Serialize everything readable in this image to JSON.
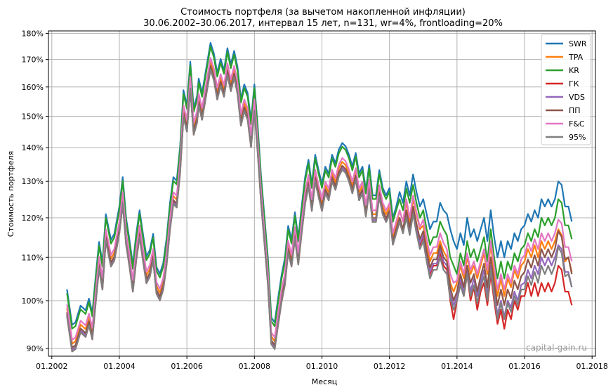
{
  "chart_data": {
    "type": "line",
    "title_line1": "Стоимость портфеля (за вычетом накопленной инфляции)",
    "title_line2": "30.06.2002–30.06.2017, интервал 15 лет, n=131, wr=4%, frontloading=20%",
    "xlabel": "Месяц",
    "ylabel": "Стоимость портфеля",
    "xlim": [
      2001.9,
      2018.1
    ],
    "ylim": [
      88.5,
      181
    ],
    "y_scale": "log",
    "grid": true,
    "legend_position": "top-right",
    "watermark": "capital-gain.ru",
    "x_ticks": [
      {
        "v": 2002,
        "label": "01.2002"
      },
      {
        "v": 2004,
        "label": "01.2004"
      },
      {
        "v": 2006,
        "label": "01.2006"
      },
      {
        "v": 2008,
        "label": "01.2008"
      },
      {
        "v": 2010,
        "label": "01.2010"
      },
      {
        "v": 2012,
        "label": "01.2012"
      },
      {
        "v": 2014,
        "label": "01.2014"
      },
      {
        "v": 2016,
        "label": "01.2016"
      },
      {
        "v": 2018,
        "label": "01.2018"
      }
    ],
    "y_ticks": [
      {
        "v": 90,
        "label": "90%"
      },
      {
        "v": 100,
        "label": "100%"
      },
      {
        "v": 110,
        "label": "110%"
      },
      {
        "v": 120,
        "label": "120%"
      },
      {
        "v": 130,
        "label": "130%"
      },
      {
        "v": 140,
        "label": "140%"
      },
      {
        "v": 150,
        "label": "150%"
      },
      {
        "v": 160,
        "label": "160%"
      },
      {
        "v": 170,
        "label": "170%"
      },
      {
        "v": 180,
        "label": "180%"
      }
    ],
    "base": {
      "x": [
        2002.45,
        2002.6,
        2002.7,
        2002.85,
        2003.0,
        2003.1,
        2003.2,
        2003.3,
        2003.4,
        2003.5,
        2003.6,
        2003.75,
        2003.85,
        2004.0,
        2004.1,
        2004.2,
        2004.3,
        2004.4,
        2004.5,
        2004.6,
        2004.7,
        2004.8,
        2004.9,
        2005.0,
        2005.1,
        2005.2,
        2005.3,
        2005.4,
        2005.5,
        2005.6,
        2005.7,
        2005.8,
        2005.9,
        2006.0,
        2006.1,
        2006.2,
        2006.3,
        2006.35,
        2006.45,
        2006.55,
        2006.7,
        2006.8,
        2006.9,
        2007.0,
        2007.1,
        2007.2,
        2007.3,
        2007.4,
        2007.5,
        2007.6,
        2007.7,
        2007.8,
        2007.9,
        2008.0,
        2008.1,
        2008.2,
        2008.3,
        2008.4,
        2008.5,
        2008.6,
        2008.7,
        2008.8,
        2008.9,
        2009.0,
        2009.1,
        2009.2,
        2009.3,
        2009.4,
        2009.5,
        2009.6,
        2009.7,
        2009.8,
        2009.9,
        2010.0,
        2010.1,
        2010.2,
        2010.3,
        2010.4,
        2010.5,
        2010.6,
        2010.7,
        2010.8,
        2010.9,
        2011.0,
        2011.1,
        2011.2,
        2011.3,
        2011.4,
        2011.5,
        2011.6,
        2011.7,
        2011.8,
        2011.9,
        2012.0,
        2012.1,
        2012.2
      ],
      "y": [
        100,
        92.5,
        93,
        96.5,
        95.5,
        98,
        95,
        103,
        111,
        106,
        118,
        111.5,
        113,
        120,
        128,
        117,
        111.5,
        105.5,
        113,
        119,
        113,
        107.5,
        109,
        113,
        105,
        103.5,
        106,
        112,
        121,
        128,
        127,
        137,
        155,
        150,
        165,
        149,
        153,
        159,
        154,
        161,
        172,
        168,
        161,
        166,
        162,
        170,
        164,
        169,
        163,
        152,
        157,
        154,
        145,
        157,
        143,
        128,
        117,
        107,
        94,
        93,
        98,
        103,
        107,
        115,
        111.5,
        118.5,
        112,
        120,
        128,
        133,
        126,
        134.5,
        130,
        126,
        131,
        129,
        134.5,
        132,
        136,
        138,
        137,
        134.5,
        131,
        135,
        129,
        131,
        124.5,
        131.5,
        123,
        123,
        130,
        125,
        123,
        125,
        117,
        120
      ]
    },
    "series": [
      {
        "name": "SWR",
        "color": "#1f77b4",
        "x": [
          2012.2,
          2012.3,
          2012.4,
          2012.5,
          2012.6,
          2012.7,
          2012.8,
          2012.9,
          2013.0,
          2013.1,
          2013.2,
          2013.3,
          2013.4,
          2013.5,
          2013.6,
          2013.7,
          2013.8,
          2013.9,
          2014.0,
          2014.1,
          2014.2,
          2014.3,
          2014.4,
          2014.5,
          2014.6,
          2014.7,
          2014.8,
          2014.9,
          2015.0,
          2015.1,
          2015.2,
          2015.3,
          2015.4,
          2015.5,
          2015.6,
          2015.7,
          2015.8,
          2015.9,
          2016.0,
          2016.1,
          2016.2,
          2016.3,
          2016.4,
          2016.5,
          2016.6,
          2016.7,
          2016.8,
          2016.9,
          2017.0,
          2017.1,
          2017.2,
          2017.3,
          2017.4
        ],
        "y": [
          123,
          127,
          124,
          130,
          126,
          132,
          127,
          123,
          125,
          121,
          117,
          119,
          119,
          124,
          122,
          121,
          117,
          114,
          112,
          116,
          113,
          120,
          115,
          117,
          114,
          117,
          120,
          114,
          122,
          115,
          110,
          114,
          110,
          114,
          112,
          116,
          114,
          117,
          118,
          121,
          119,
          122,
          120,
          125,
          123,
          125,
          123,
          125,
          130,
          129,
          123,
          123,
          119
        ]
      },
      {
        "name": "TPA",
        "color": "#ff7f0e",
        "x": [
          2012.2,
          2012.3,
          2012.4,
          2012.5,
          2012.6,
          2012.7,
          2012.8,
          2012.9,
          2013.0,
          2013.1,
          2013.2,
          2013.3,
          2013.4,
          2013.5,
          2013.6,
          2013.7,
          2013.8,
          2013.9,
          2014.0,
          2014.1,
          2014.2,
          2014.3,
          2014.4,
          2014.5,
          2014.6,
          2014.7,
          2014.8,
          2014.9,
          2015.0,
          2015.1,
          2015.2,
          2015.3,
          2015.4,
          2015.5,
          2015.6,
          2015.7,
          2015.8,
          2015.9,
          2016.0,
          2016.1,
          2016.2,
          2016.3,
          2016.4,
          2016.5,
          2016.6,
          2016.7,
          2016.8,
          2016.9,
          2017.0,
          2017.1,
          2017.2,
          2017.3,
          2017.4
        ],
        "y": [
          118,
          122,
          119,
          124,
          119,
          125,
          121,
          117,
          118,
          113.5,
          109,
          111,
          111,
          114,
          111.5,
          110,
          104,
          102,
          104,
          108,
          105,
          110,
          106,
          108,
          105,
          108,
          111,
          106,
          113,
          106.5,
          101,
          105,
          101,
          105,
          103,
          107,
          105,
          108,
          109,
          112,
          110,
          113,
          110,
          114,
          112,
          114,
          112,
          114,
          117,
          115.5,
          109,
          110,
          106.5
        ]
      },
      {
        "name": "KR",
        "color": "#2ca02c",
        "x": [
          2012.2,
          2012.3,
          2012.4,
          2012.5,
          2012.6,
          2012.7,
          2012.8,
          2012.9,
          2013.0,
          2013.1,
          2013.2,
          2013.3,
          2013.4,
          2013.5,
          2013.6,
          2013.7,
          2013.8,
          2013.9,
          2014.0,
          2014.1,
          2014.2,
          2014.3,
          2014.4,
          2014.5,
          2014.6,
          2014.7,
          2014.8,
          2014.9,
          2015.0,
          2015.1,
          2015.2,
          2015.3,
          2015.4,
          2015.5,
          2015.6,
          2015.7,
          2015.8,
          2015.9,
          2016.0,
          2016.1,
          2016.2,
          2016.3,
          2016.4,
          2016.5,
          2016.6,
          2016.7,
          2016.8,
          2016.9,
          2017.0,
          2017.1,
          2017.2,
          2017.3,
          2017.4
        ],
        "y": [
          122,
          125,
          122,
          128,
          124,
          129,
          124,
          120,
          122,
          117,
          113,
          115,
          115,
          119,
          117,
          115.5,
          110,
          108,
          106,
          111,
          108,
          114,
          110,
          112,
          109,
          112,
          115,
          109,
          117,
          110,
          105,
          109,
          105,
          109,
          107,
          111,
          109,
          112,
          113,
          116,
          114,
          117,
          115,
          120,
          118,
          120,
          118,
          120,
          125,
          124,
          118,
          118,
          114.5
        ]
      },
      {
        "name": "ГК",
        "color": "#d62728",
        "x": [
          2012.2,
          2012.3,
          2012.4,
          2012.5,
          2012.6,
          2012.7,
          2012.8,
          2012.9,
          2013.0,
          2013.1,
          2013.2,
          2013.3,
          2013.4,
          2013.5,
          2013.6,
          2013.7,
          2013.8,
          2013.9,
          2014.0,
          2014.1,
          2014.2,
          2014.3,
          2014.4,
          2014.5,
          2014.6,
          2014.7,
          2014.8,
          2014.9,
          2015.0,
          2015.1,
          2015.2,
          2015.3,
          2015.4,
          2015.5,
          2015.6,
          2015.7,
          2015.8,
          2015.9,
          2016.0,
          2016.1,
          2016.2,
          2016.3,
          2016.4,
          2016.5,
          2016.6,
          2016.7,
          2016.8,
          2016.9,
          2017.0,
          2017.1,
          2017.2,
          2017.3,
          2017.4
        ],
        "y": [
          116,
          119,
          116,
          121,
          116,
          122,
          117,
          113,
          115,
          110,
          106,
          108,
          108,
          111,
          108,
          107,
          100,
          96,
          100,
          104,
          101,
          106,
          100,
          103,
          98,
          102,
          104,
          99,
          106,
          100,
          95,
          98,
          94,
          98,
          96,
          100,
          98,
          101,
          101,
          104,
          101,
          104,
          101,
          104,
          102,
          104,
          102,
          104,
          108,
          107,
          102,
          102,
          99
        ]
      },
      {
        "name": "VDS",
        "color": "#9467bd",
        "x": [
          2012.2,
          2012.3,
          2012.4,
          2012.5,
          2012.6,
          2012.7,
          2012.8,
          2012.9,
          2013.0,
          2013.1,
          2013.2,
          2013.3,
          2013.4,
          2013.5,
          2013.6,
          2013.7,
          2013.8,
          2013.9,
          2014.0,
          2014.1,
          2014.2,
          2014.3,
          2014.4,
          2014.5,
          2014.6,
          2014.7,
          2014.8,
          2014.9,
          2015.0,
          2015.1,
          2015.2,
          2015.3,
          2015.4,
          2015.5,
          2015.6,
          2015.7,
          2015.8,
          2015.9,
          2016.0,
          2016.1,
          2016.2,
          2016.3,
          2016.4,
          2016.5,
          2016.6,
          2016.7,
          2016.8,
          2016.9,
          2017.0,
          2017.1,
          2017.2,
          2017.3,
          2017.4
        ],
        "y": [
          116.5,
          119.5,
          116.5,
          121.5,
          116.5,
          122.5,
          117.5,
          113.5,
          115.5,
          110.5,
          106.5,
          108.5,
          108.5,
          112,
          109,
          108,
          101.5,
          99,
          101,
          105,
          102,
          107,
          102,
          105,
          101,
          104,
          107,
          101.5,
          108,
          102,
          97,
          100,
          96.5,
          100,
          98.5,
          102,
          100,
          103.5,
          104,
          107,
          105,
          108,
          106,
          110,
          108,
          110,
          108,
          110,
          113,
          112,
          106.5,
          106.5,
          103
        ]
      },
      {
        "name": "ПП",
        "color": "#8c564b",
        "x": [
          2012.2,
          2012.3,
          2012.4,
          2012.5,
          2012.6,
          2012.7,
          2012.8,
          2012.9,
          2013.0,
          2013.1,
          2013.2,
          2013.3,
          2013.4,
          2013.5,
          2013.6,
          2013.7,
          2013.8,
          2013.9,
          2014.0,
          2014.1,
          2014.2,
          2014.3,
          2014.4,
          2014.5,
          2014.6,
          2014.7,
          2014.8,
          2014.9,
          2015.0,
          2015.1,
          2015.2,
          2015.3,
          2015.4,
          2015.5,
          2015.6,
          2015.7,
          2015.8,
          2015.9,
          2016.0,
          2016.1,
          2016.2,
          2016.3,
          2016.4,
          2016.5,
          2016.6,
          2016.7,
          2016.8,
          2016.9,
          2017.0,
          2017.1,
          2017.2,
          2017.3,
          2017.4
        ],
        "y": [
          117,
          120,
          117,
          122,
          117.5,
          123,
          118.5,
          114.5,
          116.5,
          111.5,
          107.5,
          109.5,
          109.5,
          113,
          110,
          109,
          103,
          100,
          102,
          106,
          103,
          108,
          104,
          106,
          102,
          105.5,
          108.5,
          103,
          110,
          104,
          99,
          102.5,
          99,
          102.5,
          100.5,
          104.5,
          102.5,
          105.5,
          106.5,
          109.5,
          107.5,
          110.5,
          108,
          112,
          110,
          112,
          110,
          112,
          116.5,
          115,
          109.5,
          110,
          106
        ]
      },
      {
        "name": "F&C",
        "color": "#e377c2",
        "x": [
          2012.2,
          2012.3,
          2012.4,
          2012.5,
          2012.6,
          2012.7,
          2012.8,
          2012.9,
          2013.0,
          2013.1,
          2013.2,
          2013.3,
          2013.4,
          2013.5,
          2013.6,
          2013.7,
          2013.8,
          2013.9,
          2014.0,
          2014.1,
          2014.2,
          2014.3,
          2014.4,
          2014.5,
          2014.6,
          2014.7,
          2014.8,
          2014.9,
          2015.0,
          2015.1,
          2015.2,
          2015.3,
          2015.4,
          2015.5,
          2015.6,
          2015.7,
          2015.8,
          2015.9,
          2016.0,
          2016.1,
          2016.2,
          2016.3,
          2016.4,
          2016.5,
          2016.6,
          2016.7,
          2016.8,
          2016.9,
          2017.0,
          2017.1,
          2017.2,
          2017.3,
          2017.4
        ],
        "y": [
          119,
          122,
          119,
          125,
          120,
          126,
          121.5,
          117.5,
          119.5,
          114.5,
          110.5,
          112.5,
          112.5,
          116,
          113.5,
          112,
          106,
          104,
          104.5,
          109,
          106,
          111,
          107,
          109,
          106,
          109,
          112,
          107,
          114,
          108,
          102.5,
          106,
          102.5,
          106,
          104,
          108,
          106,
          109.5,
          110.5,
          113.5,
          111.5,
          114.5,
          112,
          116,
          114,
          116,
          114,
          116,
          119.5,
          118.5,
          112.5,
          112.5,
          109
        ]
      },
      {
        "name": "95%",
        "color": "#7f7f7f",
        "x": [
          2012.2,
          2012.3,
          2012.4,
          2012.5,
          2012.6,
          2012.7,
          2012.8,
          2012.9,
          2013.0,
          2013.1,
          2013.2,
          2013.3,
          2013.4,
          2013.5,
          2013.6,
          2013.7,
          2013.8,
          2013.9,
          2014.0,
          2014.1,
          2014.2,
          2014.3,
          2014.4,
          2014.5,
          2014.6,
          2014.7,
          2014.8,
          2014.9,
          2015.0,
          2015.1,
          2015.2,
          2015.3,
          2015.4,
          2015.5,
          2015.6,
          2015.7,
          2015.8,
          2015.9,
          2016.0,
          2016.1,
          2016.2,
          2016.3,
          2016.4,
          2016.5,
          2016.6,
          2016.7,
          2016.8,
          2016.9,
          2017.0,
          2017.1,
          2017.2,
          2017.3,
          2017.4
        ],
        "y": [
          116,
          119,
          116,
          120,
          115.5,
          121,
          116,
          112,
          114,
          109,
          105,
          107,
          107,
          110,
          107,
          106,
          100.5,
          98,
          100,
          103.5,
          101,
          106,
          101,
          103.5,
          99.5,
          103,
          105.5,
          100,
          107,
          101,
          96,
          99.5,
          96,
          99.5,
          97.5,
          101,
          99,
          102.5,
          102.5,
          105.5,
          103.5,
          106.5,
          104,
          108,
          106,
          108,
          106,
          108,
          112.5,
          111,
          105.5,
          106,
          103
        ]
      }
    ]
  }
}
